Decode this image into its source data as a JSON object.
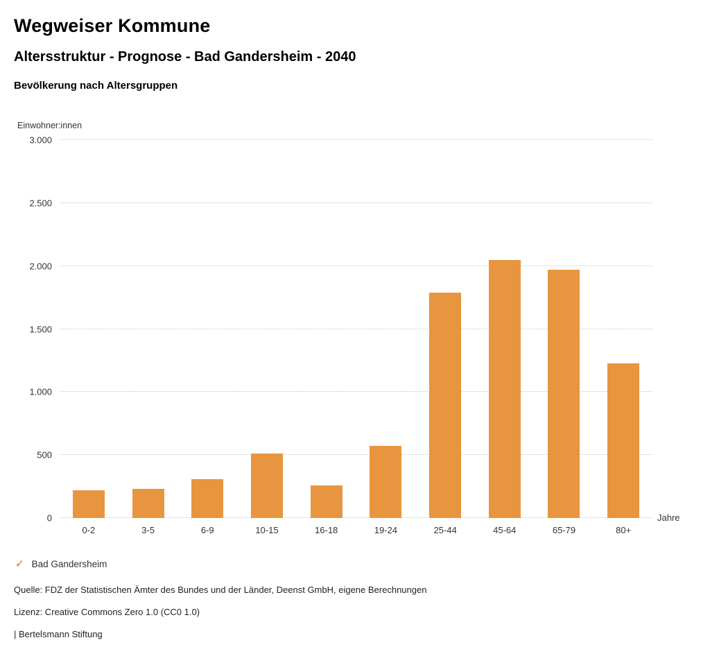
{
  "header": {
    "title": "Wegweiser Kommune",
    "subtitle": "Altersstruktur - Prognose - Bad Gandersheim - 2040",
    "chart_title": "Bevölkerung nach Altersgruppen"
  },
  "chart_data": {
    "type": "bar",
    "title": "Bevölkerung nach Altersgruppen",
    "categories": [
      "0-2",
      "3-5",
      "6-9",
      "10-15",
      "16-18",
      "19-24",
      "25-44",
      "45-64",
      "65-79",
      "80+"
    ],
    "values": [
      220,
      230,
      310,
      510,
      260,
      570,
      1790,
      2050,
      1970,
      1230
    ],
    "xlabel": "Jahre",
    "ylabel": "Einwohner:innen",
    "ylim": [
      0,
      3000
    ],
    "ytick_interval": 500,
    "yticks": [
      {
        "value": 0,
        "label": "0"
      },
      {
        "value": 500,
        "label": "500"
      },
      {
        "value": 1000,
        "label": "1.000"
      },
      {
        "value": 1500,
        "label": "1.500"
      },
      {
        "value": 2000,
        "label": "2.000"
      },
      {
        "value": 2500,
        "label": "2.500"
      },
      {
        "value": 3000,
        "label": "3.000"
      }
    ],
    "bar_color": "#E8953F",
    "grid": "dotted horizontal",
    "legend_position": "bottom-left",
    "series_name": "Bad Gandersheim"
  },
  "legend": {
    "check_icon": "✓",
    "label": "Bad Gandersheim",
    "accent_color": "#E8953F"
  },
  "footer": {
    "source": "Quelle: FDZ der Statistischen Ämter des Bundes und der Länder, Deenst GmbH, eigene Berechnungen",
    "license": "Lizenz: Creative Commons Zero 1.0 (CC0 1.0)",
    "attribution": "| Bertelsmann Stiftung"
  }
}
